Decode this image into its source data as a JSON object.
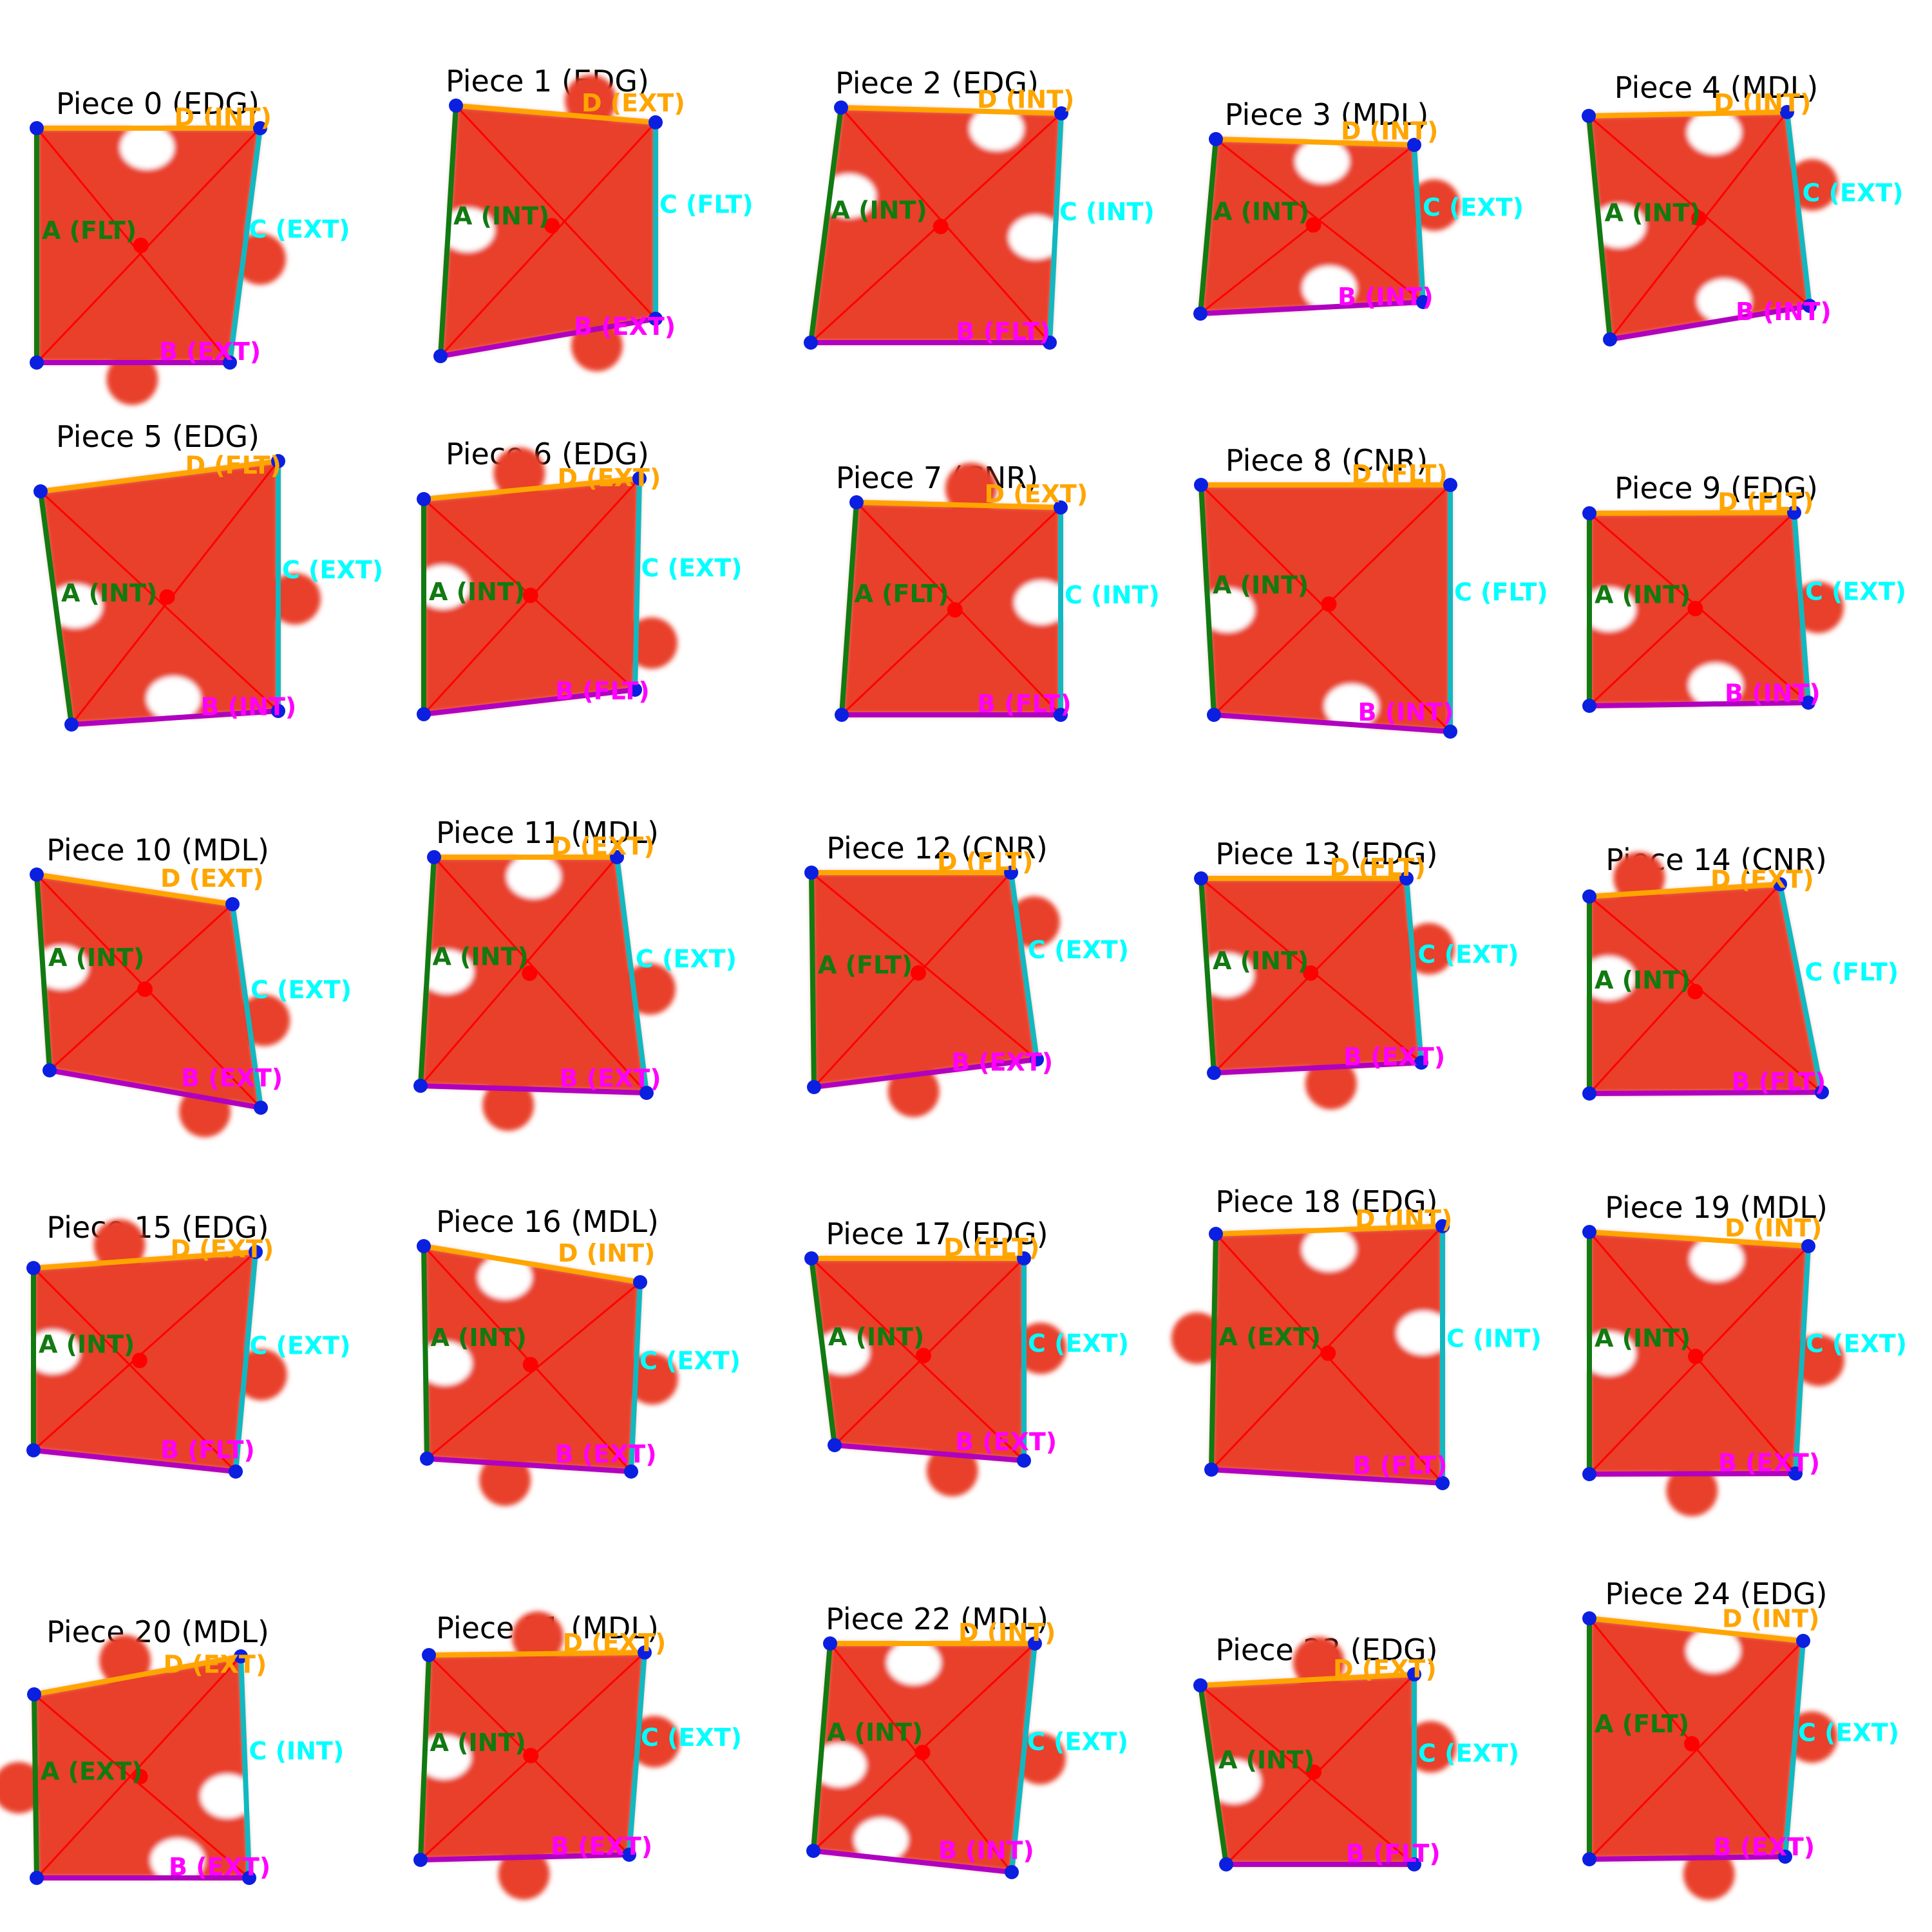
{
  "edge_colors": {
    "A": "#117a11",
    "B": "#b000c0",
    "C": "#12b8c0",
    "D": "#ffa500"
  },
  "label_colors": {
    "A": "#117a11",
    "B": "#ff00ff",
    "C": "#00ffff",
    "D": "#ffa500"
  },
  "piece_color": "#e8402a",
  "pieces": [
    {
      "title": "Piece 0 (EDG)",
      "edges": {
        "A": "A (FLT)",
        "B": "B (EXT)",
        "C": "C (EXT)",
        "D": "D (INT)"
      }
    },
    {
      "title": "Piece 1 (EDG)",
      "edges": {
        "A": "A (INT)",
        "B": "B (EXT)",
        "C": "C (FLT)",
        "D": "D (EXT)"
      }
    },
    {
      "title": "Piece 2 (EDG)",
      "edges": {
        "A": "A (INT)",
        "B": "B (FLT)",
        "C": "C (INT)",
        "D": "D (INT)"
      }
    },
    {
      "title": "Piece 3 (MDL)",
      "edges": {
        "A": "A (INT)",
        "B": "B (INT)",
        "C": "C (EXT)",
        "D": "D (INT)"
      }
    },
    {
      "title": "Piece 4 (MDL)",
      "edges": {
        "A": "A (INT)",
        "B": "B (INT)",
        "C": "C (EXT)",
        "D": "D (INT)"
      }
    },
    {
      "title": "Piece 5 (EDG)",
      "edges": {
        "A": "A (INT)",
        "B": "B (INT)",
        "C": "C (EXT)",
        "D": "D (FLT)"
      }
    },
    {
      "title": "Piece 6 (EDG)",
      "edges": {
        "A": "A (INT)",
        "B": "B (FLT)",
        "C": "C (EXT)",
        "D": "D (EXT)"
      }
    },
    {
      "title": "Piece 7 (CNR)",
      "edges": {
        "A": "A (FLT)",
        "B": "B (FLT)",
        "C": "C (INT)",
        "D": "D (EXT)"
      }
    },
    {
      "title": "Piece 8 (CNR)",
      "edges": {
        "A": "A (INT)",
        "B": "B (INT)",
        "C": "C (FLT)",
        "D": "D (FLT)"
      }
    },
    {
      "title": "Piece 9 (EDG)",
      "edges": {
        "A": "A (INT)",
        "B": "B (INT)",
        "C": "C (EXT)",
        "D": "D (FLT)"
      }
    },
    {
      "title": "Piece 10 (MDL)",
      "edges": {
        "A": "A (INT)",
        "B": "B (EXT)",
        "C": "C (EXT)",
        "D": "D (EXT)"
      }
    },
    {
      "title": "Piece 11 (MDL)",
      "edges": {
        "A": "A (INT)",
        "B": "B (EXT)",
        "C": "C (EXT)",
        "D": "D (EXT)"
      }
    },
    {
      "title": "Piece 12 (CNR)",
      "edges": {
        "A": "A (FLT)",
        "B": "B (EXT)",
        "C": "C (EXT)",
        "D": "D (FLT)"
      }
    },
    {
      "title": "Piece 13 (EDG)",
      "edges": {
        "A": "A (INT)",
        "B": "B (EXT)",
        "C": "C (EXT)",
        "D": "D (FLT)"
      }
    },
    {
      "title": "Piece 14 (CNR)",
      "edges": {
        "A": "A (INT)",
        "B": "B (FLT)",
        "C": "C (FLT)",
        "D": "D (EXT)"
      }
    },
    {
      "title": "Piece 15 (EDG)",
      "edges": {
        "A": "A (INT)",
        "B": "B (FLT)",
        "C": "C (EXT)",
        "D": "D (EXT)"
      }
    },
    {
      "title": "Piece 16 (MDL)",
      "edges": {
        "A": "A (INT)",
        "B": "B (EXT)",
        "C": "C (EXT)",
        "D": "D (INT)"
      }
    },
    {
      "title": "Piece 17 (EDG)",
      "edges": {
        "A": "A (INT)",
        "B": "B (EXT)",
        "C": "C (EXT)",
        "D": "D (FLT)"
      }
    },
    {
      "title": "Piece 18 (EDG)",
      "edges": {
        "A": "A (EXT)",
        "B": "B (FLT)",
        "C": "C (INT)",
        "D": "D (INT)"
      }
    },
    {
      "title": "Piece 19 (MDL)",
      "edges": {
        "A": "A (INT)",
        "B": "B (EXT)",
        "C": "C (EXT)",
        "D": "D (INT)"
      }
    },
    {
      "title": "Piece 20 (MDL)",
      "edges": {
        "A": "A (EXT)",
        "B": "B (EXT)",
        "C": "C (INT)",
        "D": "D (EXT)"
      }
    },
    {
      "title": "Piece 21 (MDL)",
      "edges": {
        "A": "A (INT)",
        "B": "B (EXT)",
        "C": "C (EXT)",
        "D": "D (EXT)"
      }
    },
    {
      "title": "Piece 22 (MDL)",
      "edges": {
        "A": "A (INT)",
        "B": "B (INT)",
        "C": "C (EXT)",
        "D": "D (INT)"
      }
    },
    {
      "title": "Piece 23 (EDG)",
      "edges": {
        "A": "A (INT)",
        "B": "B (FLT)",
        "C": "C (EXT)",
        "D": "D (EXT)"
      }
    },
    {
      "title": "Piece 24 (EDG)",
      "edges": {
        "A": "A (FLT)",
        "B": "B (EXT)",
        "C": "C (EXT)",
        "D": "D (INT)"
      }
    }
  ]
}
